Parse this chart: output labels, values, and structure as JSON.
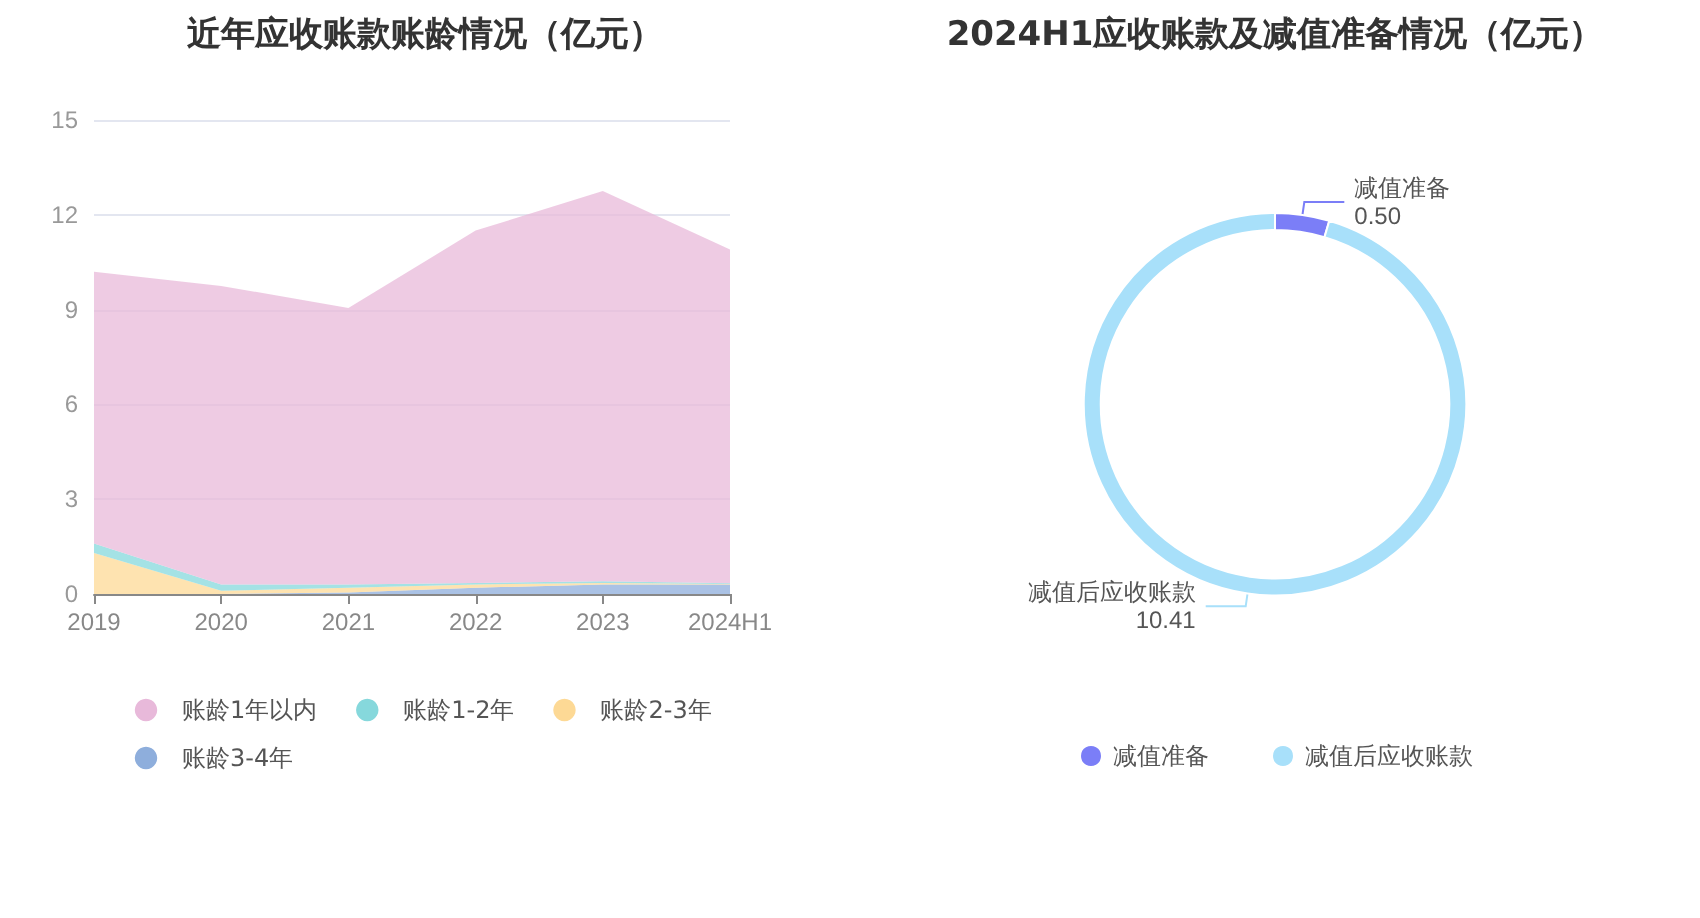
{
  "chart_data": [
    {
      "type": "area",
      "title": "近年应收账款账龄情况（亿元）",
      "categories": [
        "2019",
        "2020",
        "2021",
        "2022",
        "2023",
        "2024H1"
      ],
      "stacked": true,
      "series": [
        {
          "name": "账龄3-4年",
          "color": "#8eaedc",
          "values": [
            0,
            0,
            0.05,
            0.2,
            0.3,
            0.3
          ]
        },
        {
          "name": "账龄2-3年",
          "color": "#fdd995",
          "values": [
            1.3,
            0.1,
            0.15,
            0.1,
            0.05,
            0.02
          ]
        },
        {
          "name": "账龄1-2年",
          "color": "#86d8dc",
          "values": [
            0.3,
            0.2,
            0.1,
            0.05,
            0.05,
            0.02
          ]
        },
        {
          "name": "账龄1年以内",
          "color": "#e8b9da",
          "values": [
            8.6,
            9.45,
            8.75,
            11.15,
            12.35,
            10.56
          ]
        }
      ],
      "ylim": [
        0,
        15
      ],
      "yticks": [
        0,
        3,
        6,
        9,
        12,
        15
      ],
      "grid": "y",
      "legend": "bottom left",
      "marker": "none"
    },
    {
      "type": "donut",
      "title": "2024H1应收账款及减值准备情况（亿元）",
      "categories": [
        "减值准备",
        "减值后应收账款"
      ],
      "values": [
        0.5,
        10.41
      ],
      "colors": [
        "#7b7ef7",
        "#a8e0fa"
      ],
      "value_labels": [
        "0.50",
        "10.41"
      ],
      "legend": "bottom"
    }
  ]
}
